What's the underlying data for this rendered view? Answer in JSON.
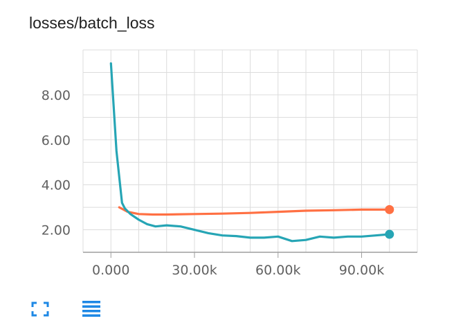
{
  "card": {
    "title": "losses/batch_loss"
  },
  "toolbar": {
    "buttons": [
      {
        "icon": "fullscreen-icon"
      },
      {
        "icon": "data-series-menu-icon"
      }
    ],
    "icon_color": "#1E88E5"
  },
  "chart_data": {
    "type": "line",
    "title": "losses/batch_loss",
    "xlabel": "",
    "ylabel": "",
    "xlim": [
      -10000,
      110000
    ],
    "ylim": [
      1.0,
      10.0
    ],
    "x_ticks": [
      0,
      30000,
      60000,
      90000
    ],
    "x_tick_labels": [
      "0.000",
      "30.00k",
      "60.00k",
      "90.00k"
    ],
    "y_ticks": [
      2,
      4,
      6,
      8
    ],
    "y_tick_labels": [
      "2.00",
      "4.00",
      "6.00",
      "8.00"
    ],
    "grid": true,
    "series": [
      {
        "color": "#FF7043",
        "x": [
          3000,
          6000,
          10000,
          15000,
          20000,
          30000,
          40000,
          50000,
          60000,
          70000,
          80000,
          90000,
          100000
        ],
        "y": [
          3.0,
          2.8,
          2.7,
          2.68,
          2.68,
          2.7,
          2.72,
          2.75,
          2.8,
          2.85,
          2.87,
          2.9,
          2.9
        ]
      },
      {
        "color": "#26A5B5",
        "x": [
          0,
          2000,
          4000,
          5000,
          7000,
          10000,
          13000,
          16000,
          20000,
          25000,
          30000,
          35000,
          40000,
          45000,
          50000,
          55000,
          60000,
          65000,
          70000,
          75000,
          80000,
          85000,
          90000,
          95000,
          100000
        ],
        "y": [
          9.4,
          5.5,
          3.2,
          2.95,
          2.7,
          2.45,
          2.25,
          2.15,
          2.2,
          2.15,
          2.0,
          1.85,
          1.75,
          1.72,
          1.65,
          1.65,
          1.7,
          1.5,
          1.55,
          1.7,
          1.65,
          1.7,
          1.7,
          1.75,
          1.8
        ]
      }
    ]
  }
}
